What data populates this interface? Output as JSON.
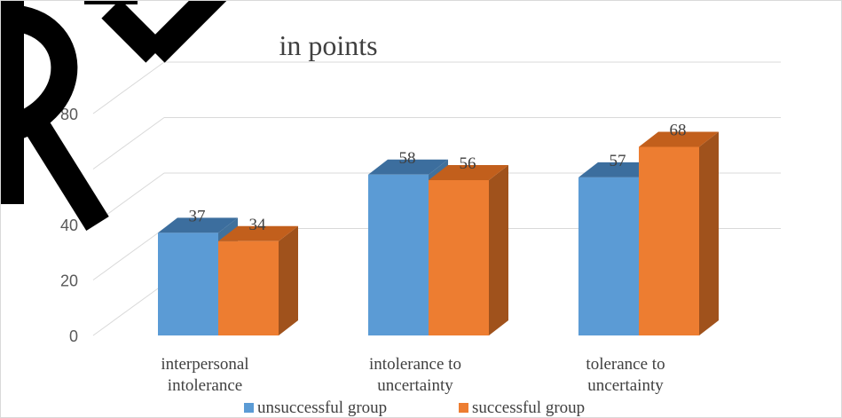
{
  "chart_data": {
    "type": "bar",
    "three_d": true,
    "title": "in points",
    "xlabel": "",
    "ylabel": "",
    "categories": [
      [
        "interpersonal",
        "intolerance"
      ],
      [
        "intolerance to",
        "uncertainty"
      ],
      [
        "tolerance to",
        "uncertainty"
      ]
    ],
    "series": [
      {
        "name": "unsuccessful group",
        "values": [
          37,
          58,
          57
        ],
        "color": "#5B9BD5",
        "side_color": "#41719C",
        "top_color": "#3C6E9E"
      },
      {
        "name": "successful group",
        "values": [
          34,
          56,
          68
        ],
        "color": "#ED7D31",
        "side_color": "#A0521C",
        "top_color": "#C25F1C"
      }
    ],
    "ylim": [
      0,
      80
    ],
    "yticks": [
      0,
      20,
      40,
      60,
      80
    ],
    "grid": true,
    "data_labels": true,
    "legend_position": "bottom"
  }
}
